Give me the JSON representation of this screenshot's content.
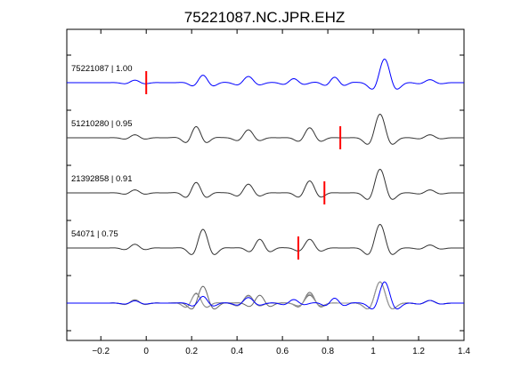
{
  "chart_data": {
    "type": "line",
    "title": "75221087.NC.JPR.EHZ",
    "xlabel": "",
    "ylabel": "",
    "xlim": [
      -0.35,
      1.4
    ],
    "x_ticks": [
      -0.2,
      0,
      0.2,
      0.4,
      0.6,
      0.8,
      1,
      1.2,
      1.4
    ],
    "x_tick_labels": [
      "−0.2",
      "0",
      "0.2",
      "0.4",
      "0.6",
      "0.8",
      "1",
      "1.2",
      "1.4"
    ],
    "grid": false,
    "legend": "none",
    "series": [
      {
        "name": "75221087 | 1.00",
        "color": "#0000ff",
        "pick_time": 0.0,
        "wavelets": [
          {
            "t": -0.05,
            "f": 9,
            "a": 0.1
          },
          {
            "t": 0.25,
            "f": 9,
            "a": 0.3
          },
          {
            "t": 0.45,
            "f": 8,
            "a": 0.25
          },
          {
            "t": 0.65,
            "f": 9,
            "a": 0.16
          },
          {
            "t": 0.83,
            "f": 10,
            "a": 0.22
          },
          {
            "t": 1.05,
            "f": 7,
            "a": 0.95
          },
          {
            "t": 1.25,
            "f": 8,
            "a": 0.12
          }
        ]
      },
      {
        "name": "51210280 | 0.95",
        "color": "#333333",
        "pick_time": 0.855,
        "wavelets": [
          {
            "t": -0.05,
            "f": 9,
            "a": 0.12
          },
          {
            "t": 0.22,
            "f": 9,
            "a": 0.45
          },
          {
            "t": 0.45,
            "f": 8,
            "a": 0.32
          },
          {
            "t": 0.72,
            "f": 8,
            "a": 0.4
          },
          {
            "t": 1.03,
            "f": 7,
            "a": 0.95
          },
          {
            "t": 1.25,
            "f": 8,
            "a": 0.12
          }
        ]
      },
      {
        "name": "21392858 | 0.91",
        "color": "#333333",
        "pick_time": 0.785,
        "wavelets": [
          {
            "t": -0.05,
            "f": 9,
            "a": 0.12
          },
          {
            "t": 0.22,
            "f": 9,
            "a": 0.42
          },
          {
            "t": 0.45,
            "f": 8,
            "a": 0.35
          },
          {
            "t": 0.72,
            "f": 8,
            "a": 0.48
          },
          {
            "t": 1.03,
            "f": 7,
            "a": 0.95
          },
          {
            "t": 1.25,
            "f": 8,
            "a": 0.12
          }
        ]
      },
      {
        "name": "54071 | 0.75",
        "color": "#333333",
        "pick_time": 0.67,
        "wavelets": [
          {
            "t": -0.05,
            "f": 9,
            "a": 0.15
          },
          {
            "t": 0.25,
            "f": 8,
            "a": 0.75
          },
          {
            "t": 0.5,
            "f": 9,
            "a": 0.35
          },
          {
            "t": 0.72,
            "f": 8,
            "a": 0.35
          },
          {
            "t": 1.03,
            "f": 7,
            "a": 0.95
          },
          {
            "t": 1.25,
            "f": 8,
            "a": 0.12
          }
        ]
      }
    ],
    "overlay": {
      "colors": [
        "#0000ff",
        "#666666",
        "#999999"
      ],
      "note_visible": false
    },
    "pick_color": "#ff0000"
  }
}
